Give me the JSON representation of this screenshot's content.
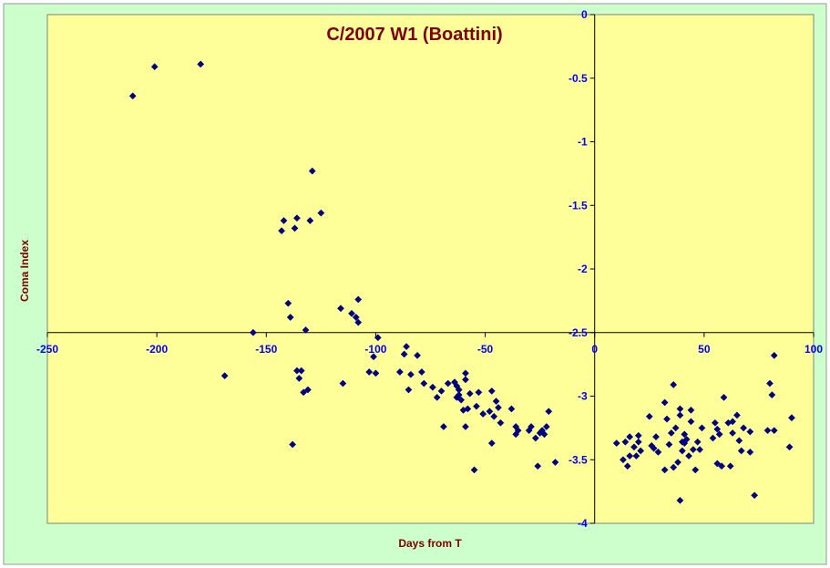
{
  "colors": {
    "outer_background": "#CCFFCC",
    "plot_background": "#FFFF99",
    "title": "#800000",
    "axis_title": "#800000",
    "tick_label": "#0000FF",
    "marker": "#000080",
    "axis_line": "#000000"
  },
  "chart_data": {
    "type": "scatter",
    "title": "C/2007 W1 (Boattini)",
    "xlabel": "Days from T",
    "ylabel": "Coma Index",
    "xlim": [
      -250,
      100
    ],
    "ylim": [
      -4,
      0
    ],
    "x_ticks": [
      -250,
      -200,
      -150,
      -100,
      -50,
      0,
      50,
      100
    ],
    "y_ticks": [
      0,
      -0.5,
      -1,
      -1.5,
      -2,
      -2.5,
      -3,
      -3.5,
      -4
    ],
    "x_tick_labels": [
      "-250",
      "-200",
      "-150",
      "-100",
      "-50",
      "0",
      "50",
      "100"
    ],
    "y_tick_labels": [
      "0",
      "-0.5",
      "-1",
      "-1.5",
      "-2",
      "-2.5",
      "-3",
      "-3.5",
      "-4"
    ],
    "axes_cross_at": {
      "x_axis_at_y": -2.5,
      "y_axis_at_x": 0
    },
    "grid": false,
    "legend": "none",
    "marker": "diamond",
    "series": [
      {
        "points": [
          [
            -211,
            -0.64
          ],
          [
            -201,
            -0.41
          ],
          [
            -180,
            -0.39
          ],
          [
            -169,
            -2.84
          ],
          [
            -156,
            -2.5
          ],
          [
            -143,
            -1.7
          ],
          [
            -142,
            -1.62
          ],
          [
            -140,
            -2.27
          ],
          [
            -139,
            -2.38
          ],
          [
            -138,
            -3.38
          ],
          [
            -137,
            -1.68
          ],
          [
            -136,
            -1.6
          ],
          [
            -136,
            -2.8
          ],
          [
            -135,
            -2.86
          ],
          [
            -134,
            -2.8
          ],
          [
            -133,
            -2.97
          ],
          [
            -132,
            -2.48
          ],
          [
            -131,
            -2.95
          ],
          [
            -130,
            -1.62
          ],
          [
            -129,
            -1.23
          ],
          [
            -125,
            -1.56
          ],
          [
            -116,
            -2.31
          ],
          [
            -115,
            -2.9
          ],
          [
            -111,
            -2.35
          ],
          [
            -109,
            -2.38
          ],
          [
            -108,
            -2.42
          ],
          [
            -108,
            -2.24
          ],
          [
            -103,
            -2.81
          ],
          [
            -101,
            -2.69
          ],
          [
            -100,
            -2.82
          ],
          [
            -99,
            -2.54
          ],
          [
            -89,
            -2.81
          ],
          [
            -87,
            -2.67
          ],
          [
            -86,
            -2.61
          ],
          [
            -85,
            -2.95
          ],
          [
            -84,
            -2.83
          ],
          [
            -81,
            -2.68
          ],
          [
            -79,
            -2.81
          ],
          [
            -78,
            -2.9
          ],
          [
            -74,
            -2.93
          ],
          [
            -72,
            -3.01
          ],
          [
            -70,
            -2.96
          ],
          [
            -69,
            -3.24
          ],
          [
            -67,
            -2.9
          ],
          [
            -64,
            -2.89
          ],
          [
            -63,
            -2.92
          ],
          [
            -63,
            -3.01
          ],
          [
            -62,
            -2.95
          ],
          [
            -62,
            -2.99
          ],
          [
            -61,
            -3.03
          ],
          [
            -60,
            -3.11
          ],
          [
            -59,
            -2.87
          ],
          [
            -59,
            -2.82
          ],
          [
            -59,
            -3.24
          ],
          [
            -58,
            -3.1
          ],
          [
            -57,
            -2.98
          ],
          [
            -55,
            -3.58
          ],
          [
            -54,
            -3.08
          ],
          [
            -53,
            -2.97
          ],
          [
            -51,
            -3.14
          ],
          [
            -48,
            -3.12
          ],
          [
            -47,
            -3.37
          ],
          [
            -47,
            -2.96
          ],
          [
            -46,
            -3.16
          ],
          [
            -45,
            -3.04
          ],
          [
            -44,
            -3.09
          ],
          [
            -43,
            -3.21
          ],
          [
            -38,
            -3.1
          ],
          [
            -36,
            -3.24
          ],
          [
            -36,
            -3.3
          ],
          [
            -35,
            -3.27
          ],
          [
            -30,
            -3.27
          ],
          [
            -29,
            -3.24
          ],
          [
            -27,
            -3.33
          ],
          [
            -26,
            -3.55
          ],
          [
            -25,
            -3.29
          ],
          [
            -24,
            -3.27
          ],
          [
            -23,
            -3.3
          ],
          [
            -22,
            -3.24
          ],
          [
            -21,
            -3.12
          ],
          [
            -18,
            -3.52
          ],
          [
            10,
            -3.37
          ],
          [
            13,
            -3.5
          ],
          [
            14,
            -3.36
          ],
          [
            15,
            -3.55
          ],
          [
            16,
            -3.47
          ],
          [
            16,
            -3.32
          ],
          [
            18,
            -3.4
          ],
          [
            19,
            -3.47
          ],
          [
            20,
            -3.36
          ],
          [
            20,
            -3.31
          ],
          [
            21,
            -3.43
          ],
          [
            25,
            -3.16
          ],
          [
            26,
            -3.39
          ],
          [
            27,
            -3.41
          ],
          [
            28,
            -3.32
          ],
          [
            29,
            -3.44
          ],
          [
            32,
            -3.58
          ],
          [
            32,
            -3.05
          ],
          [
            33,
            -3.18
          ],
          [
            34,
            -3.38
          ],
          [
            35,
            -3.29
          ],
          [
            36,
            -3.56
          ],
          [
            36,
            -2.91
          ],
          [
            37,
            -3.25
          ],
          [
            38,
            -3.52
          ],
          [
            39,
            -3.82
          ],
          [
            39,
            -3.1
          ],
          [
            39,
            -3.15
          ],
          [
            40,
            -3.36
          ],
          [
            40,
            -3.43
          ],
          [
            41,
            -3.3
          ],
          [
            41,
            -3.37
          ],
          [
            42,
            -3.34
          ],
          [
            43,
            -3.47
          ],
          [
            44,
            -3.11
          ],
          [
            44,
            -3.2
          ],
          [
            45,
            -3.42
          ],
          [
            46,
            -3.58
          ],
          [
            47,
            -3.36
          ],
          [
            48,
            -3.42
          ],
          [
            49,
            -3.25
          ],
          [
            54,
            -3.33
          ],
          [
            55,
            -3.21
          ],
          [
            56,
            -3.26
          ],
          [
            56,
            -3.53
          ],
          [
            57,
            -3.3
          ],
          [
            58,
            -3.55
          ],
          [
            59,
            -3.01
          ],
          [
            61,
            -3.21
          ],
          [
            62,
            -3.55
          ],
          [
            63,
            -3.2
          ],
          [
            63,
            -3.29
          ],
          [
            65,
            -3.15
          ],
          [
            66,
            -3.35
          ],
          [
            67,
            -3.43
          ],
          [
            68,
            -3.25
          ],
          [
            71,
            -3.28
          ],
          [
            71,
            -3.44
          ],
          [
            73,
            -3.78
          ],
          [
            79,
            -3.27
          ],
          [
            80,
            -2.9
          ],
          [
            81,
            -2.99
          ],
          [
            82,
            -3.27
          ],
          [
            82,
            -2.68
          ],
          [
            89,
            -3.4
          ],
          [
            90,
            -3.17
          ]
        ]
      }
    ]
  }
}
